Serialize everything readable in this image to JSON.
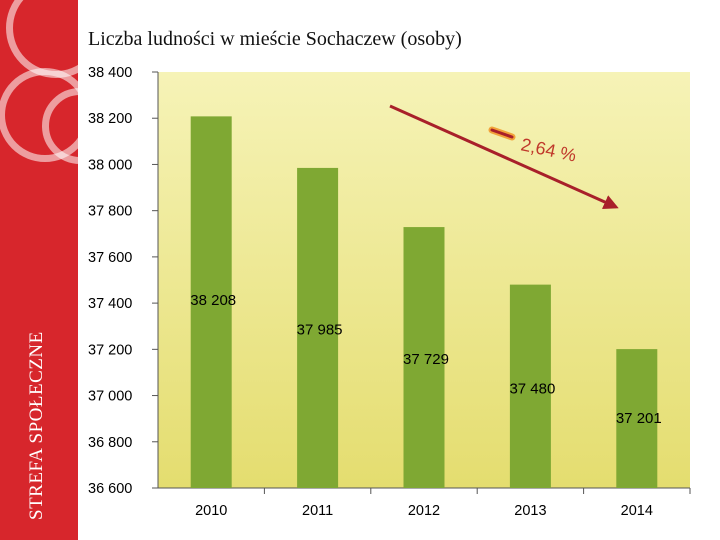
{
  "sidebar": {
    "text": "STREFA SPOŁECZNE"
  },
  "chart_data": {
    "type": "bar",
    "title": "Liczba ludności w mieście Sochaczew (osoby)",
    "categories": [
      "2010",
      "2011",
      "2012",
      "2013",
      "2014"
    ],
    "values": [
      38208,
      37985,
      37729,
      37480,
      37201
    ],
    "data_labels": [
      "38 208",
      "37 985",
      "37 729",
      "37 480",
      "37 201"
    ],
    "ylim": [
      36600,
      38400
    ],
    "yticks": [
      36600,
      36800,
      37000,
      37200,
      37400,
      37600,
      37800,
      38000,
      38200,
      38400
    ],
    "ytick_labels": [
      "36 600",
      "36 800",
      "37 000",
      "37 200",
      "37 400",
      "37 600",
      "37 800",
      "38 000",
      "38 200",
      "38 400"
    ],
    "grid": false,
    "annotation": {
      "text": "2,64 %",
      "prefix_mark": "minus-sign",
      "arrow": "down-right"
    },
    "colors": {
      "bar": "#7fa833",
      "plot_bg_top": "#f6f3b7",
      "plot_bg_bottom": "#e4dd6f",
      "arrow": "#a8202a",
      "sidebar": "#d7262c"
    }
  }
}
